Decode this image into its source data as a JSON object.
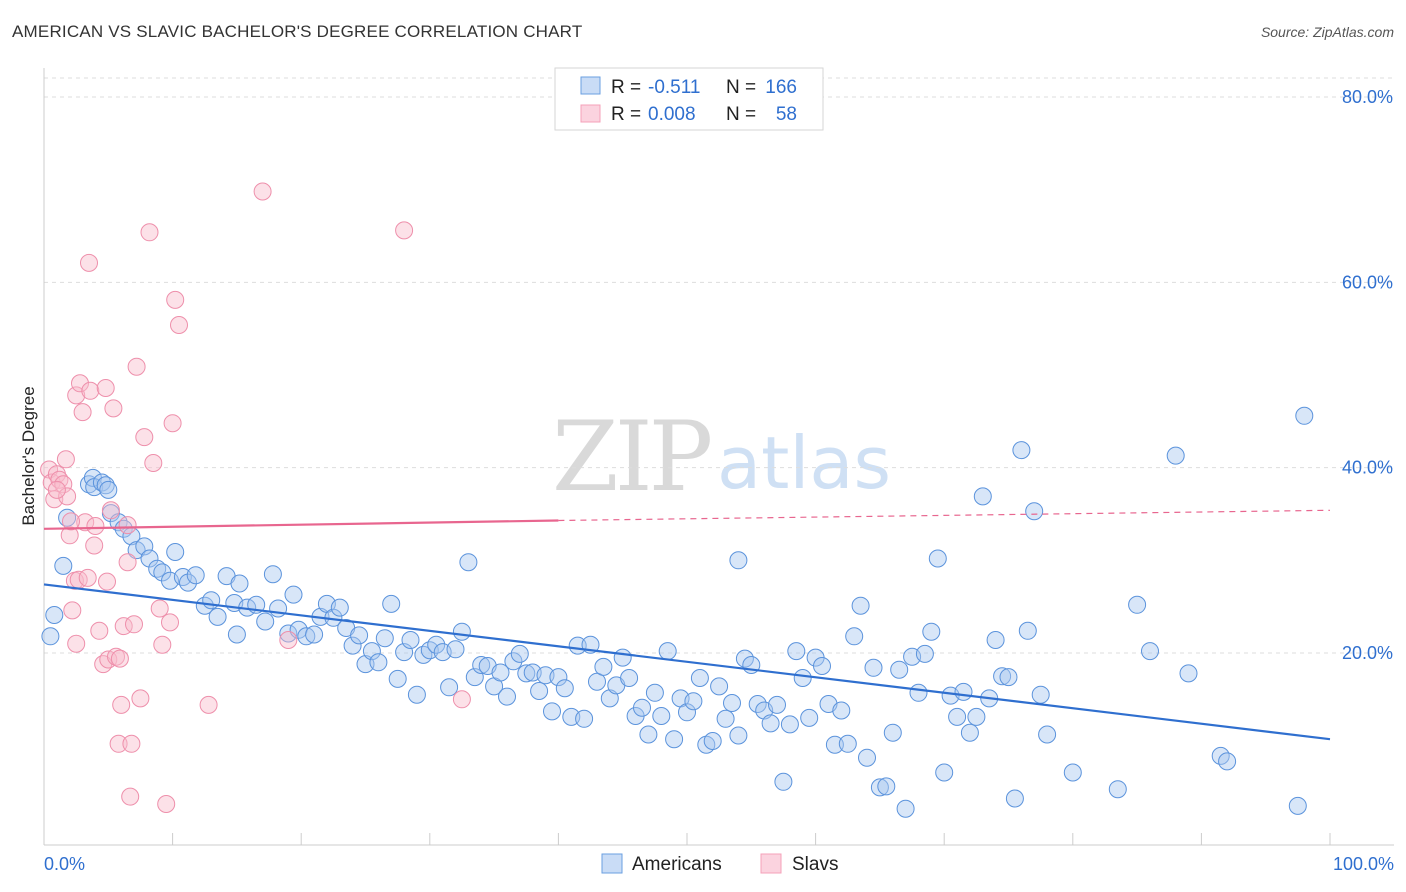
{
  "header": {
    "title": "AMERICAN VS SLAVIC BACHELOR'S DEGREE CORRELATION CHART",
    "source": "Source: ZipAtlas.com"
  },
  "stats": {
    "r_label": "R =",
    "n_label": "N =",
    "americans": {
      "r": "-0.511",
      "n": "166",
      "color": "#6a9fe0"
    },
    "slavs": {
      "r": "0.008",
      "n": "58",
      "color": "#f4a0b8"
    }
  },
  "watermark": {
    "zip": "ZIP",
    "atlas": "atlas"
  },
  "chart_data": {
    "type": "scatter",
    "title": "AMERICAN VS SLAVIC BACHELOR'S DEGREE CORRELATION CHART",
    "xlabel": "",
    "ylabel": "Bachelor's Degree",
    "xlim": [
      0,
      100
    ],
    "ylim": [
      0,
      84
    ],
    "x_tick_labels": [
      "0.0%",
      "100.0%"
    ],
    "y_ticks": [
      20,
      40,
      60,
      80
    ],
    "y_tick_labels": [
      "20.0%",
      "40.0%",
      "60.0%",
      "80.0%"
    ],
    "grid": true,
    "legend_position": "bottom-center",
    "series": [
      {
        "name": "Americans",
        "color": "#6a9fe0",
        "trend": {
          "x": [
            0,
            100
          ],
          "y": [
            27.4,
            10.7
          ],
          "style": "solid"
        },
        "points": [
          [
            0.5,
            21.8
          ],
          [
            0.8,
            24.1
          ],
          [
            1.5,
            29.4
          ],
          [
            1.8,
            34.6
          ],
          [
            3.5,
            38.2
          ],
          [
            3.8,
            38.9
          ],
          [
            3.9,
            37.9
          ],
          [
            4.5,
            38.4
          ],
          [
            4.8,
            38.1
          ],
          [
            5.0,
            37.6
          ],
          [
            5.2,
            35.1
          ],
          [
            5.8,
            34.1
          ],
          [
            6.2,
            33.4
          ],
          [
            6.8,
            32.6
          ],
          [
            7.2,
            31.1
          ],
          [
            7.8,
            31.5
          ],
          [
            8.2,
            30.2
          ],
          [
            8.8,
            29.1
          ],
          [
            9.2,
            28.7
          ],
          [
            9.8,
            27.8
          ],
          [
            10.2,
            30.9
          ],
          [
            10.8,
            28.2
          ],
          [
            11.2,
            27.6
          ],
          [
            11.8,
            28.4
          ],
          [
            12.5,
            25.1
          ],
          [
            13.0,
            25.7
          ],
          [
            13.5,
            23.9
          ],
          [
            14.2,
            28.3
          ],
          [
            14.8,
            25.4
          ],
          [
            15.2,
            27.5
          ],
          [
            15.8,
            24.9
          ],
          [
            16.5,
            25.2
          ],
          [
            17.2,
            23.4
          ],
          [
            17.8,
            28.5
          ],
          [
            18.2,
            24.8
          ],
          [
            19.0,
            22.1
          ],
          [
            19.4,
            26.3
          ],
          [
            19.8,
            22.5
          ],
          [
            20.4,
            21.8
          ],
          [
            21.0,
            22.0
          ],
          [
            21.5,
            23.9
          ],
          [
            22.0,
            25.3
          ],
          [
            22.5,
            23.8
          ],
          [
            23.0,
            24.9
          ],
          [
            23.5,
            22.7
          ],
          [
            24.0,
            20.8
          ],
          [
            24.5,
            21.9
          ],
          [
            25.0,
            18.8
          ],
          [
            25.5,
            20.2
          ],
          [
            26.0,
            19.0
          ],
          [
            26.5,
            21.6
          ],
          [
            27.0,
            25.3
          ],
          [
            27.5,
            17.2
          ],
          [
            28.0,
            20.1
          ],
          [
            28.5,
            21.4
          ],
          [
            29.0,
            15.5
          ],
          [
            29.5,
            19.8
          ],
          [
            30.0,
            20.3
          ],
          [
            30.5,
            20.9
          ],
          [
            31.0,
            20.1
          ],
          [
            31.5,
            16.3
          ],
          [
            32.0,
            20.4
          ],
          [
            32.5,
            22.3
          ],
          [
            33.0,
            29.8
          ],
          [
            33.5,
            17.4
          ],
          [
            34.0,
            18.7
          ],
          [
            34.5,
            18.6
          ],
          [
            35.0,
            16.4
          ],
          [
            35.5,
            17.9
          ],
          [
            36.0,
            15.3
          ],
          [
            36.5,
            19.1
          ],
          [
            37.0,
            19.9
          ],
          [
            37.5,
            17.8
          ],
          [
            38.0,
            17.9
          ],
          [
            38.5,
            15.9
          ],
          [
            39.0,
            17.6
          ],
          [
            39.5,
            13.7
          ],
          [
            40.0,
            17.4
          ],
          [
            40.5,
            16.2
          ],
          [
            41.0,
            13.1
          ],
          [
            41.5,
            20.8
          ],
          [
            42.0,
            12.9
          ],
          [
            42.5,
            20.9
          ],
          [
            43.0,
            16.9
          ],
          [
            43.5,
            18.5
          ],
          [
            44.0,
            15.1
          ],
          [
            44.5,
            16.5
          ],
          [
            45.0,
            19.5
          ],
          [
            45.5,
            17.3
          ],
          [
            46.0,
            13.2
          ],
          [
            46.5,
            14.1
          ],
          [
            47.0,
            11.2
          ],
          [
            47.5,
            15.7
          ],
          [
            48.0,
            13.2
          ],
          [
            48.5,
            20.2
          ],
          [
            49.0,
            10.7
          ],
          [
            49.5,
            15.1
          ],
          [
            50.0,
            13.6
          ],
          [
            50.5,
            14.8
          ],
          [
            51.0,
            17.3
          ],
          [
            51.5,
            10.1
          ],
          [
            52.0,
            10.5
          ],
          [
            52.5,
            16.4
          ],
          [
            53.0,
            12.9
          ],
          [
            53.5,
            14.6
          ],
          [
            54.0,
            11.1
          ],
          [
            54.5,
            19.4
          ],
          [
            55.0,
            18.7
          ],
          [
            55.5,
            14.5
          ],
          [
            56.0,
            13.8
          ],
          [
            56.5,
            12.4
          ],
          [
            57.0,
            14.4
          ],
          [
            57.5,
            6.1
          ],
          [
            58.0,
            12.3
          ],
          [
            58.5,
            20.2
          ],
          [
            59.0,
            17.3
          ],
          [
            59.5,
            13.0
          ],
          [
            60.0,
            19.5
          ],
          [
            60.5,
            18.6
          ],
          [
            61.0,
            14.5
          ],
          [
            61.5,
            10.1
          ],
          [
            62.0,
            13.8
          ],
          [
            62.5,
            10.2
          ],
          [
            63.0,
            21.8
          ],
          [
            63.5,
            25.1
          ],
          [
            64.0,
            8.7
          ],
          [
            64.5,
            18.4
          ],
          [
            65.0,
            5.5
          ],
          [
            65.5,
            5.6
          ],
          [
            66.0,
            11.4
          ],
          [
            66.5,
            18.2
          ],
          [
            67.0,
            3.2
          ],
          [
            67.5,
            19.6
          ],
          [
            68.0,
            15.7
          ],
          [
            68.5,
            19.9
          ],
          [
            69.0,
            22.3
          ],
          [
            69.5,
            30.2
          ],
          [
            70.0,
            7.1
          ],
          [
            70.5,
            15.4
          ],
          [
            71.0,
            13.1
          ],
          [
            71.5,
            15.8
          ],
          [
            72.0,
            11.4
          ],
          [
            72.5,
            13.1
          ],
          [
            73.0,
            36.9
          ],
          [
            73.5,
            15.1
          ],
          [
            74.0,
            21.4
          ],
          [
            74.5,
            17.5
          ],
          [
            75.0,
            17.4
          ],
          [
            75.5,
            4.3
          ],
          [
            76.0,
            41.9
          ],
          [
            76.5,
            22.4
          ],
          [
            77.0,
            35.3
          ],
          [
            77.5,
            15.5
          ],
          [
            78.0,
            11.2
          ],
          [
            80.0,
            7.1
          ],
          [
            83.5,
            5.3
          ],
          [
            85.0,
            25.2
          ],
          [
            86.0,
            20.2
          ],
          [
            88.0,
            41.3
          ],
          [
            89.0,
            17.8
          ],
          [
            91.5,
            8.9
          ],
          [
            92.0,
            8.3
          ],
          [
            97.5,
            3.5
          ],
          [
            98.0,
            45.6
          ],
          [
            54.0,
            30.0
          ],
          [
            15.0,
            22.0
          ]
        ]
      },
      {
        "name": "Slavs",
        "color": "#f4a0b8",
        "trend": {
          "x": [
            0,
            40,
            100
          ],
          "y": [
            33.4,
            34.3,
            35.4
          ],
          "style": "solid-then-dashed"
        },
        "points": [
          [
            0.4,
            39.8
          ],
          [
            0.6,
            38.4
          ],
          [
            0.8,
            36.6
          ],
          [
            1.0,
            39.3
          ],
          [
            1.2,
            38.7
          ],
          [
            1.5,
            38.2
          ],
          [
            1.7,
            40.9
          ],
          [
            1.8,
            36.9
          ],
          [
            2.0,
            32.7
          ],
          [
            2.2,
            24.6
          ],
          [
            2.4,
            27.8
          ],
          [
            2.5,
            47.8
          ],
          [
            2.7,
            27.9
          ],
          [
            2.8,
            49.1
          ],
          [
            3.0,
            46.0
          ],
          [
            3.2,
            34.1
          ],
          [
            3.4,
            28.1
          ],
          [
            3.5,
            62.1
          ],
          [
            3.6,
            48.3
          ],
          [
            3.9,
            31.6
          ],
          [
            4.0,
            33.7
          ],
          [
            4.3,
            22.4
          ],
          [
            4.6,
            18.8
          ],
          [
            4.8,
            48.6
          ],
          [
            4.9,
            27.7
          ],
          [
            5.0,
            19.3
          ],
          [
            5.2,
            35.4
          ],
          [
            5.4,
            46.4
          ],
          [
            5.6,
            19.6
          ],
          [
            5.8,
            10.2
          ],
          [
            5.9,
            19.4
          ],
          [
            6.0,
            14.4
          ],
          [
            6.2,
            22.9
          ],
          [
            6.5,
            29.8
          ],
          [
            6.7,
            4.5
          ],
          [
            6.8,
            10.2
          ],
          [
            7.0,
            23.1
          ],
          [
            7.2,
            50.9
          ],
          [
            7.5,
            15.1
          ],
          [
            7.8,
            43.3
          ],
          [
            8.2,
            65.4
          ],
          [
            8.5,
            40.5
          ],
          [
            9.0,
            24.8
          ],
          [
            9.2,
            20.9
          ],
          [
            9.5,
            3.7
          ],
          [
            9.8,
            23.3
          ],
          [
            10.0,
            44.8
          ],
          [
            10.2,
            58.1
          ],
          [
            10.5,
            55.4
          ],
          [
            12.8,
            14.4
          ],
          [
            17.0,
            69.8
          ],
          [
            19.0,
            21.4
          ],
          [
            28.0,
            65.6
          ],
          [
            32.5,
            15.0
          ],
          [
            1.0,
            37.6
          ],
          [
            2.1,
            34.2
          ],
          [
            6.5,
            33.8
          ],
          [
            2.5,
            21.0
          ]
        ]
      }
    ]
  },
  "legend": {
    "items": [
      {
        "label": "Americans",
        "color": "#6a9fe0"
      },
      {
        "label": "Slavs",
        "color": "#f4a0b8"
      }
    ]
  }
}
